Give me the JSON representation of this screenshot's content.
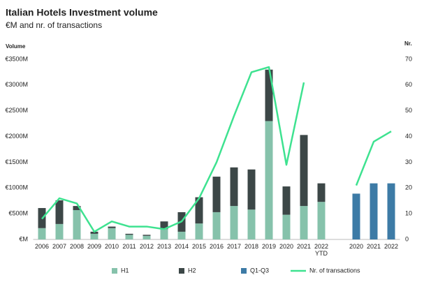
{
  "chart_data": {
    "type": "bar",
    "title": "Italian Hotels Investment volume",
    "subtitle": "€M and nr. of transactions",
    "y_label": "Volume",
    "y2_label": "Nr.",
    "categories": [
      "2006",
      "2007",
      "2008",
      "2009",
      "2010",
      "2011",
      "2012",
      "2013",
      "2014",
      "2015",
      "2016",
      "2017",
      "2018",
      "2019",
      "2020",
      "2021",
      "2022 YTD",
      null,
      "2020",
      "2021",
      "2022"
    ],
    "series": [
      {
        "name": "H1",
        "type": "bar",
        "color": "#86c2ab",
        "values": [
          220,
          300,
          570,
          110,
          220,
          90,
          70,
          200,
          150,
          310,
          530,
          650,
          580,
          2300,
          480,
          650,
          730,
          null,
          null,
          null,
          null
        ]
      },
      {
        "name": "H2",
        "type": "bar",
        "color": "#3c4747",
        "values": [
          390,
          460,
          80,
          40,
          30,
          20,
          20,
          150,
          380,
          510,
          690,
          750,
          780,
          1000,
          550,
          1380,
          360,
          null,
          null,
          null,
          null
        ]
      },
      {
        "name": "Q1-Q3",
        "type": "bar",
        "color": "#3d7ba6",
        "values": [
          null,
          null,
          null,
          null,
          null,
          null,
          null,
          null,
          null,
          null,
          null,
          null,
          null,
          null,
          null,
          null,
          null,
          null,
          890,
          1090,
          1090
        ]
      },
      {
        "name": "Nr. of transactions",
        "type": "line",
        "axis": "y2",
        "color": "#3ee290",
        "values": [
          8,
          16,
          14,
          3,
          7,
          5,
          5,
          4,
          7,
          16,
          30,
          48,
          65,
          67,
          29,
          61,
          null,
          null,
          21,
          38,
          42
        ]
      }
    ],
    "ylim": [
      0,
      3500
    ],
    "yticks": [
      {
        "value": 0,
        "label": "€M"
      },
      {
        "value": 500,
        "label": "€500M"
      },
      {
        "value": 1000,
        "label": "€1000M"
      },
      {
        "value": 1500,
        "label": "€1500M"
      },
      {
        "value": 2000,
        "label": "€2000M"
      },
      {
        "value": 2500,
        "label": "€2500M"
      },
      {
        "value": 3000,
        "label": "€3000M"
      },
      {
        "value": 3500,
        "label": "€3500M"
      }
    ],
    "y2lim": [
      0,
      70
    ],
    "y2ticks": [
      0,
      10,
      20,
      30,
      40,
      50,
      60,
      70
    ],
    "grid": false,
    "legend": "bottom"
  }
}
